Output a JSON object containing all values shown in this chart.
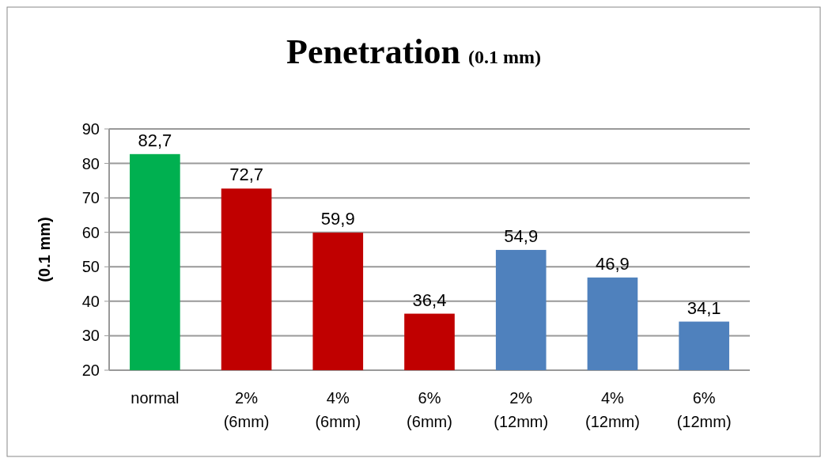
{
  "chart_data": {
    "type": "bar",
    "title": "Penetration",
    "subtitle": "(0.1 mm)",
    "ylabel": "(0.1 mm)",
    "categories": [
      "normal",
      "2% (6mm)",
      "4% (6mm)",
      "6% (6mm)",
      "2% (12mm)",
      "4% (12mm)",
      "6% (12mm)"
    ],
    "values": [
      82.7,
      72.7,
      59.9,
      36.4,
      54.9,
      46.9,
      34.1
    ],
    "value_labels": [
      "82,7",
      "72,7",
      "59,9",
      "36,4",
      "54,9",
      "46,9",
      "34,1"
    ],
    "colors": [
      "#00b050",
      "#c00000",
      "#c00000",
      "#c00000",
      "#4f81bd",
      "#4f81bd",
      "#4f81bd"
    ],
    "ylim": [
      20,
      90
    ],
    "yticks": [
      20,
      30,
      40,
      50,
      60,
      70,
      80,
      90
    ],
    "grid": true
  }
}
